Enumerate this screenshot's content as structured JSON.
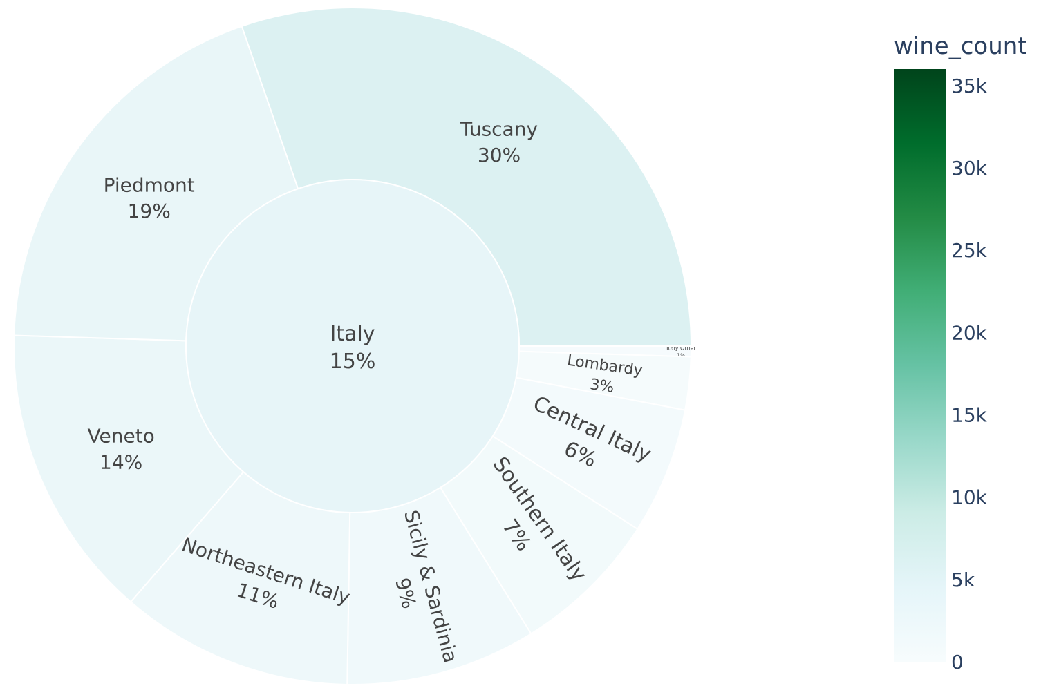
{
  "chart_data": {
    "type": "sunburst",
    "root": {
      "label": "Italy",
      "percent_label": "15%"
    },
    "segments": [
      {
        "label": "Tuscany",
        "percent_label": "30%",
        "value": 30
      },
      {
        "label": "Italy Other",
        "percent_label": "1%",
        "value": 0.5
      },
      {
        "label": "Lombardy",
        "percent_label": "3%",
        "value": 2.5
      },
      {
        "label": "Central Italy",
        "percent_label": "6%",
        "value": 6
      },
      {
        "label": "Southern Italy",
        "percent_label": "7%",
        "value": 7
      },
      {
        "label": "Sicily & Sardinia",
        "percent_label": "9%",
        "value": 9
      },
      {
        "label": "Northeastern Italy",
        "percent_label": "11%",
        "value": 11
      },
      {
        "label": "Veneto",
        "percent_label": "14%",
        "value": 14
      },
      {
        "label": "Piedmont",
        "percent_label": "19%",
        "value": 19
      }
    ],
    "colorbar": {
      "title": "wine_count",
      "range": [
        0,
        36000
      ],
      "ticks": [
        {
          "value": 0,
          "label": "0"
        },
        {
          "value": 5000,
          "label": "5k"
        },
        {
          "value": 10000,
          "label": "10k"
        },
        {
          "value": 15000,
          "label": "15k"
        },
        {
          "value": 20000,
          "label": "20k"
        },
        {
          "value": 25000,
          "label": "25k"
        },
        {
          "value": 30000,
          "label": "30k"
        },
        {
          "value": 35000,
          "label": "35k"
        }
      ],
      "colorscale": [
        "#f7fcfd",
        "#e5f5f9",
        "#ccece6",
        "#99d8c9",
        "#66c2a4",
        "#41ae76",
        "#238b45",
        "#006d2c",
        "#00441b"
      ]
    },
    "colors": {
      "root": "#e7f5f8",
      "Tuscany": "#dcf1f2",
      "Piedmont": "#e9f6f8",
      "Veneto": "#ebf7f9",
      "Northeastern Italy": "#eef8fa",
      "Sicily & Sardinia": "#f0f9fb",
      "Southern Italy": "#f2fafb",
      "Central Italy": "#f3fafc",
      "Lombardy": "#f5fbfc",
      "Italy Other": "#f6fbfd"
    }
  }
}
